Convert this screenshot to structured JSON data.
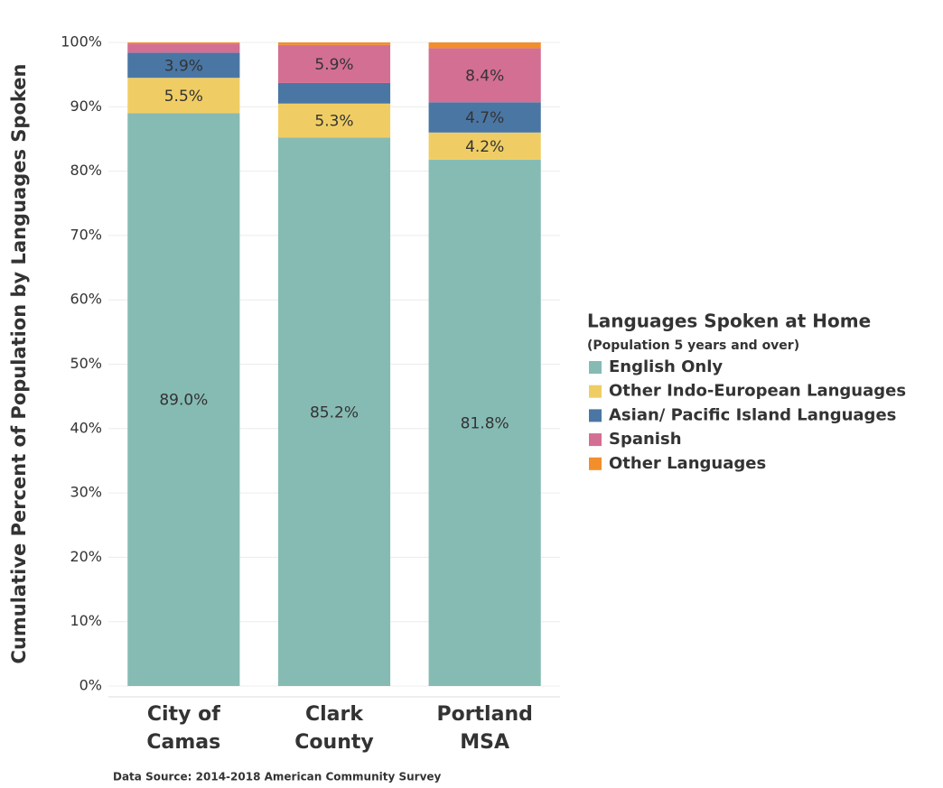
{
  "chart_data": {
    "type": "stacked_bar",
    "y_axis_label": "Cumulative Percent of Population by Languages Spoken",
    "categories": [
      [
        "City of",
        "Camas"
      ],
      [
        "Clark",
        "County"
      ],
      [
        "Portland",
        "MSA"
      ]
    ],
    "series": [
      {
        "name": "English Only",
        "color": "#86bbb4",
        "label_color": "#333333",
        "values": [
          89.0,
          85.2,
          81.8
        ],
        "value_labels": [
          "89.0%",
          "85.2%",
          "81.8%"
        ]
      },
      {
        "name": "Other Indo-European Languages",
        "color": "#f0cd64",
        "label_color": "#333333",
        "values": [
          5.5,
          5.3,
          4.2
        ],
        "value_labels": [
          "5.5%",
          "5.3%",
          "4.2%"
        ]
      },
      {
        "name": "Asian/ Pacific Island Languages",
        "color": "#4a76a4",
        "label_color": "#ffffff",
        "values": [
          3.9,
          3.2,
          4.7
        ],
        "value_labels": [
          "3.9%",
          null,
          "4.7%"
        ]
      },
      {
        "name": "Spanish",
        "color": "#d36f93",
        "label_color": "#ffffff",
        "values": [
          1.4,
          5.9,
          8.4
        ],
        "value_labels": [
          null,
          "5.9%",
          "8.4%"
        ]
      },
      {
        "name": "Other Languages",
        "color": "#f28e2b",
        "label_color": "#ffffff",
        "values": [
          0.2,
          0.4,
          0.9
        ],
        "value_labels": [
          null,
          null,
          null
        ]
      }
    ],
    "ylim": [
      0,
      100
    ],
    "yticks": [
      {
        "value": 0,
        "label": "0%"
      },
      {
        "value": 10,
        "label": "10%"
      },
      {
        "value": 20,
        "label": "20%"
      },
      {
        "value": 30,
        "label": "30%"
      },
      {
        "value": 40,
        "label": "40%"
      },
      {
        "value": 50,
        "label": "50%"
      },
      {
        "value": 60,
        "label": "60%"
      },
      {
        "value": 70,
        "label": "70%"
      },
      {
        "value": 80,
        "label": "80%"
      },
      {
        "value": 90,
        "label": "90%"
      },
      {
        "value": 100,
        "label": "100%"
      }
    ],
    "grid": true,
    "legend_title": "Languages Spoken at Home",
    "legend_subtitle": "(Population 5 years and over)",
    "legend_position": "right",
    "source": "Data Source: 2014-2018 American Community Survey"
  }
}
